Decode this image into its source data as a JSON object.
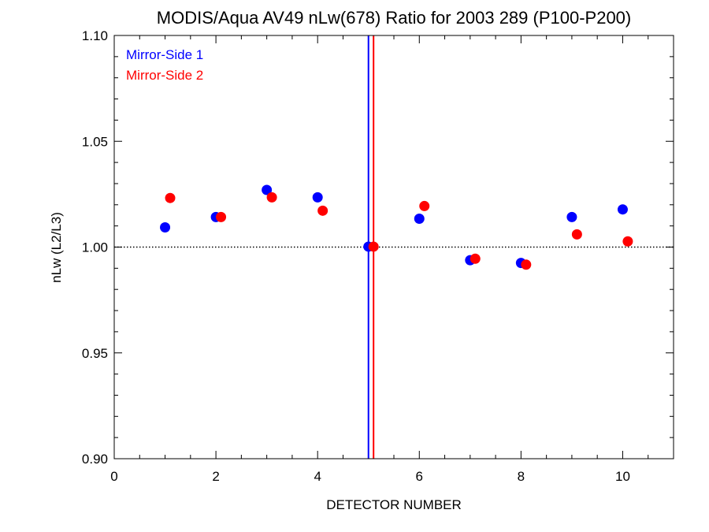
{
  "chart_data": {
    "type": "scatter",
    "title": "MODIS/Aqua AV49 nLw(678) Ratio for 2003 289 (P100-P200)",
    "xlabel": "DETECTOR NUMBER",
    "ylabel": "nLw (L2/L3)",
    "xlim": [
      0,
      11
    ],
    "ylim": [
      0.9,
      1.1
    ],
    "x_ticks": [
      0,
      2,
      4,
      6,
      8,
      10
    ],
    "x_tick_labels": [
      "0",
      "2",
      "4",
      "6",
      "8",
      "10"
    ],
    "y_ticks": [
      0.9,
      0.95,
      1.0,
      1.05,
      1.1
    ],
    "y_tick_labels": [
      "0.90",
      "0.95",
      "1.00",
      "1.05",
      "1.10"
    ],
    "reference_line_y": 1.0,
    "vertical_lines": [
      {
        "x": 5.0,
        "color": "#0000ff"
      },
      {
        "x": 5.1,
        "color": "#ff0000"
      }
    ],
    "legend_position": "top-left",
    "series": [
      {
        "name": "Mirror-Side 1",
        "color": "#0000ff",
        "x": [
          1,
          2,
          3,
          4,
          5,
          6,
          7,
          8,
          9,
          10
        ],
        "y": [
          1.0093,
          1.0142,
          1.027,
          1.0235,
          1.0002,
          1.0134,
          0.9938,
          0.9925,
          1.0142,
          1.0178
        ]
      },
      {
        "name": "Mirror-Side 2",
        "color": "#ff0000",
        "x": [
          1.1,
          2.1,
          3.1,
          4.1,
          5.1,
          6.1,
          7.1,
          8.1,
          9.1,
          10.1
        ],
        "y": [
          1.0232,
          1.0142,
          1.0235,
          1.0172,
          1.0002,
          1.0194,
          0.9945,
          0.9917,
          1.006,
          1.0027
        ]
      }
    ]
  }
}
